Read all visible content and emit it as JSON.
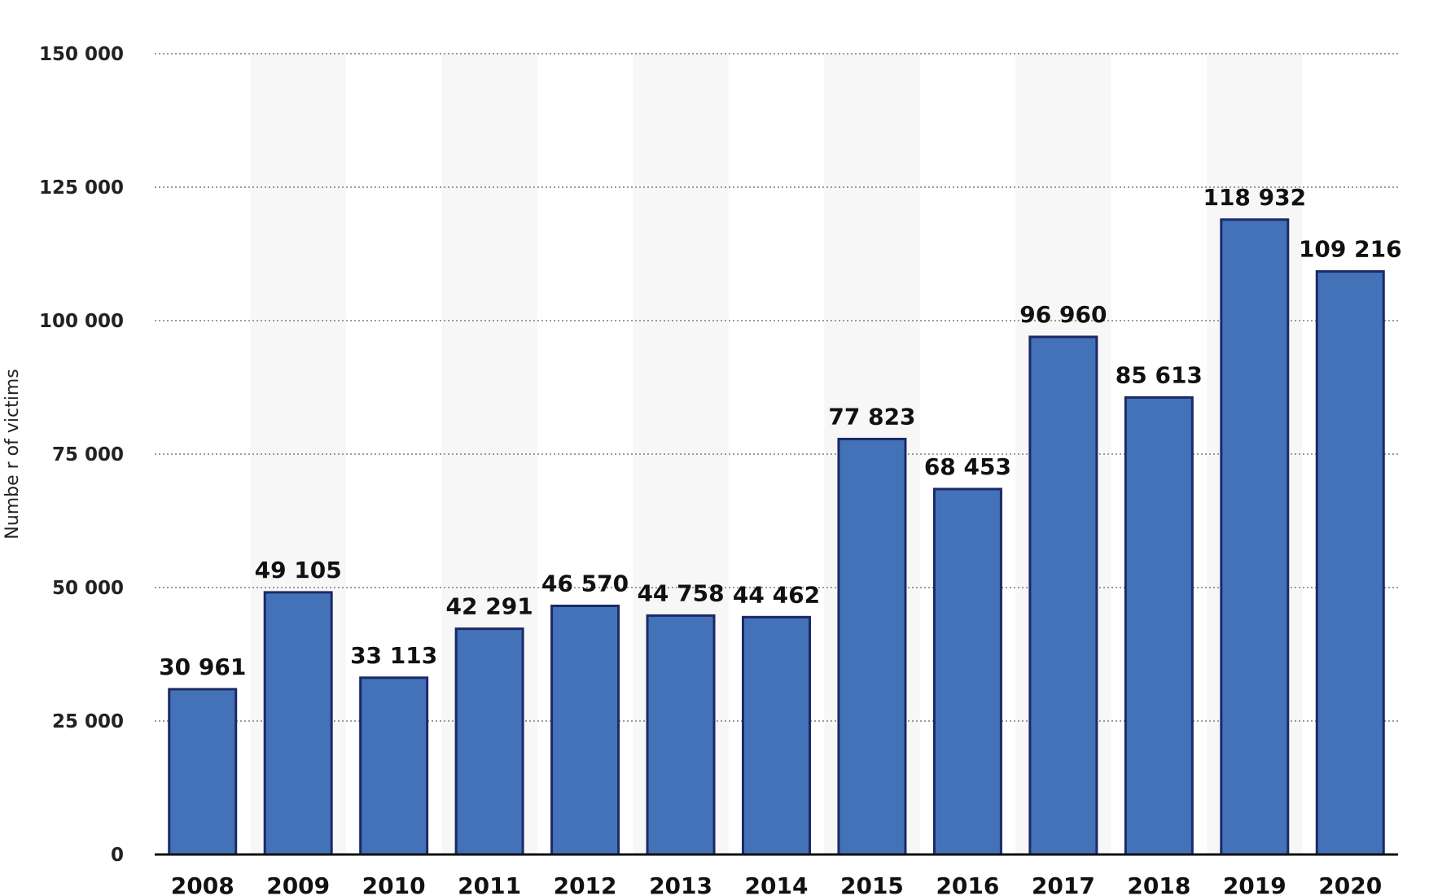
{
  "chart_data": {
    "type": "bar",
    "categories": [
      "2008",
      "2009",
      "2010",
      "2011",
      "2012",
      "2013",
      "2014",
      "2015",
      "2016",
      "2017",
      "2018",
      "2019",
      "2020"
    ],
    "values": [
      30961,
      49105,
      33113,
      42291,
      46570,
      44758,
      44462,
      77823,
      68453,
      96960,
      85613,
      118932,
      109216
    ],
    "value_labels": [
      "30 961",
      "49 105",
      "33 113",
      "42 291",
      "46 570",
      "44 758",
      "44 462",
      "77 823",
      "68 453",
      "96 960",
      "85 613",
      "118 932",
      "109 216"
    ],
    "yticks": [
      0,
      25000,
      50000,
      75000,
      100000,
      125000,
      150000
    ],
    "ytick_labels": [
      "0",
      "25 000",
      "50 000",
      "75 000",
      "100 000",
      "125 000",
      "150 000"
    ],
    "ylim": [
      0,
      150000
    ],
    "title": "",
    "xlabel": "",
    "ylabel": "Numbe r of victims",
    "grid": true,
    "legend": "none",
    "colors": {
      "bar": "#4372b8",
      "bar_edge": "#1c2a66",
      "band": "#f7f7f7"
    }
  }
}
